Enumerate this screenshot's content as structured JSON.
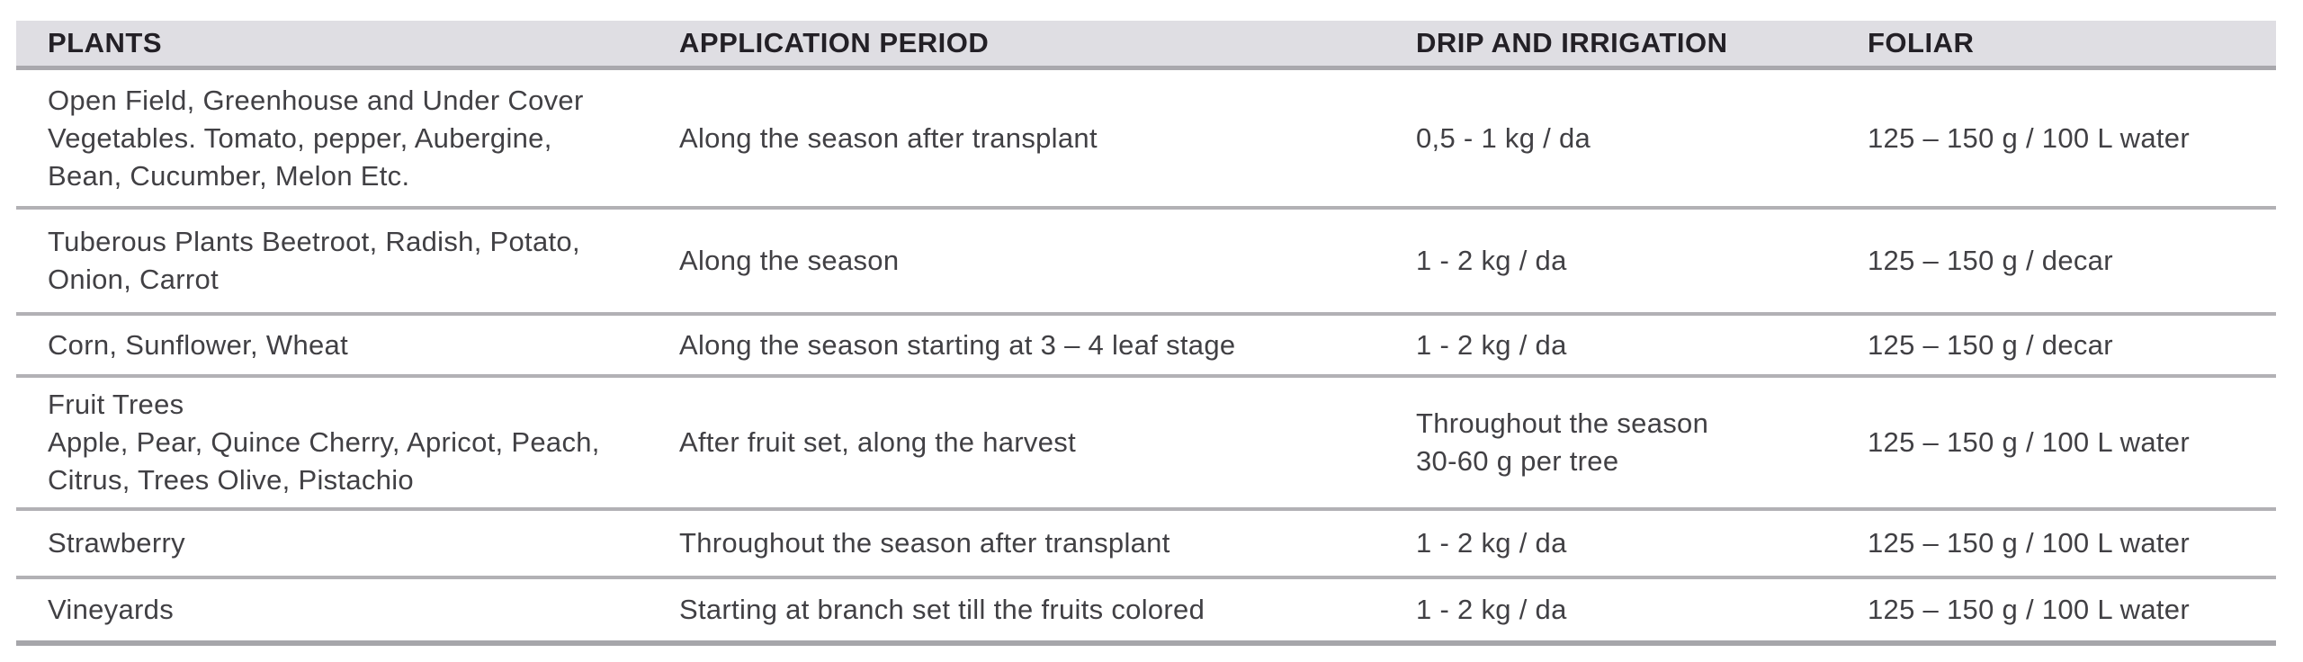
{
  "table": {
    "headers": [
      "PLANTS",
      "APPLICATION PERIOD",
      "DRIP AND IRRIGATION",
      "FOLIAR"
    ],
    "rows": [
      {
        "plants": "Open Field, Greenhouse and Under Cover\nVegetables. Tomato, pepper, Aubergine,\nBean, Cucumber, Melon Etc.",
        "application_period": "Along the season after transplant",
        "drip_and_irrigation": "0,5 - 1 kg / da",
        "foliar": "125 – 150 g / 100 L water"
      },
      {
        "plants": "Tuberous Plants Beetroot, Radish, Potato,\nOnion, Carrot",
        "application_period": "Along the season",
        "drip_and_irrigation": "1 - 2 kg / da",
        "foliar": "125 – 150 g / decar"
      },
      {
        "plants": "Corn, Sunflower, Wheat",
        "application_period": "Along the season starting at 3 – 4 leaf stage",
        "drip_and_irrigation": "1 - 2 kg / da",
        "foliar": "125 – 150 g / decar"
      },
      {
        "plants": "Fruit Trees\nApple, Pear, Quince Cherry, Apricot, Peach,\nCitrus, Trees Olive, Pistachio",
        "application_period": "After fruit set, along the harvest",
        "drip_and_irrigation": "Throughout the season\n30-60 g per tree",
        "foliar": "125 – 150 g / 100 L water"
      },
      {
        "plants": "Strawberry",
        "application_period": "Throughout the season after transplant",
        "drip_and_irrigation": "1 - 2 kg / da",
        "foliar": "125 – 150 g / 100 L water"
      },
      {
        "plants": "Vineyards",
        "application_period": "Starting at branch set till the fruits colored",
        "drip_and_irrigation": "1 - 2 kg / da",
        "foliar": "125 – 150 g / 100 L water"
      }
    ]
  },
  "colors": {
    "header_background": "#dfdee3",
    "header_text": "#232026",
    "body_text": "#414044",
    "row_divider": "#b2b1b5",
    "header_border": "#a9a8ad",
    "bottom_border": "#a6a6aa"
  }
}
